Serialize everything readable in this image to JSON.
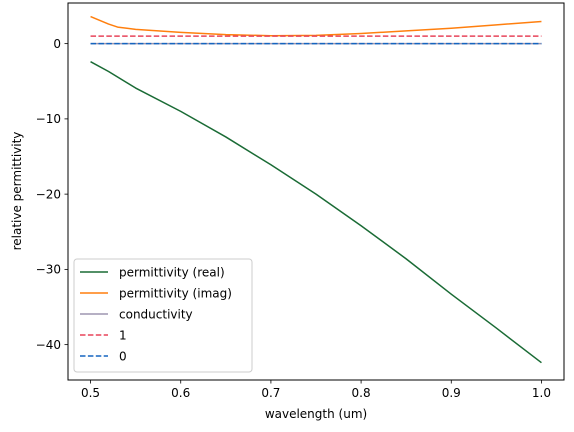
{
  "chart_data": {
    "type": "line",
    "xlabel": "wavelength (um)",
    "ylabel": "relative permittivity",
    "xlim": [
      0.475,
      1.025
    ],
    "ylim": [
      -44.7,
      5.4
    ],
    "xticks": [
      0.5,
      0.6,
      0.7,
      0.8,
      0.9,
      1.0
    ],
    "xtick_labels": [
      "0.5",
      "0.6",
      "0.7",
      "0.8",
      "0.9",
      "1.0"
    ],
    "yticks": [
      0,
      -10,
      -20,
      -30,
      -40
    ],
    "ytick_labels": [
      "0",
      "−10",
      "−20",
      "−30",
      "−40"
    ],
    "grid": false,
    "legend_position": "lower-left",
    "series": [
      {
        "name": "permittivity (real)",
        "color": "#1a6b35",
        "dash": "solid",
        "x": [
          0.5,
          0.52,
          0.55,
          0.6,
          0.65,
          0.7,
          0.75,
          0.8,
          0.85,
          0.9,
          0.95,
          1.0
        ],
        "y": [
          -2.4,
          -3.7,
          -5.9,
          -9.0,
          -12.4,
          -16.1,
          -20.0,
          -24.2,
          -28.6,
          -33.3,
          -37.8,
          -42.4
        ]
      },
      {
        "name": "permittivity (imag)",
        "color": "#ff7f0e",
        "dash": "solid",
        "x": [
          0.5,
          0.51,
          0.52,
          0.53,
          0.55,
          0.6,
          0.65,
          0.7,
          0.75,
          0.8,
          0.85,
          0.9,
          0.95,
          1.0
        ],
        "y": [
          3.6,
          3.1,
          2.6,
          2.2,
          1.9,
          1.5,
          1.2,
          1.05,
          1.1,
          1.35,
          1.7,
          2.05,
          2.5,
          2.95
        ]
      },
      {
        "name": "conductivity",
        "color": "#9e96b0",
        "dash": "solid",
        "x": [
          0.5,
          1.0
        ],
        "y": [
          0.0,
          0.0
        ]
      },
      {
        "name": "1",
        "color": "#e8445a",
        "dash": "dashed",
        "x": [
          0.5,
          1.0
        ],
        "y": [
          1.0,
          1.0
        ]
      },
      {
        "name": "0",
        "color": "#1565c0",
        "dash": "dashed",
        "x": [
          0.5,
          1.0
        ],
        "y": [
          0.0,
          0.0
        ]
      }
    ]
  }
}
